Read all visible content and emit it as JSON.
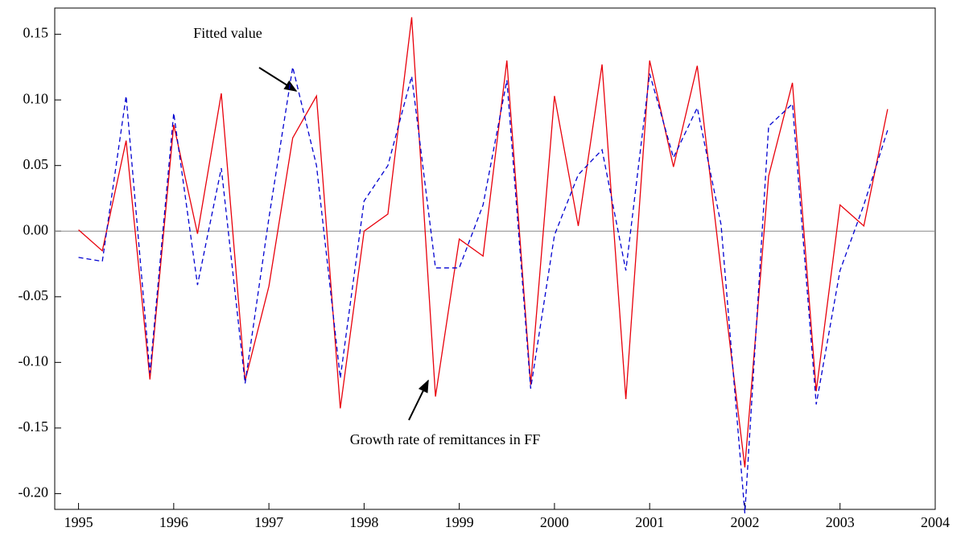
{
  "chart_data": {
    "type": "line",
    "x": [
      1995,
      1995.25,
      1995.5,
      1995.75,
      1996,
      1996.25,
      1996.5,
      1996.75,
      1997,
      1997.25,
      1997.5,
      1997.75,
      1998,
      1998.25,
      1998.5,
      1998.75,
      1999,
      1999.25,
      1999.5,
      1999.75,
      2000,
      2000.25,
      2000.5,
      2000.75,
      2001,
      2001.25,
      2001.5,
      2001.75,
      2002,
      2002.25,
      2002.5,
      2002.75,
      2003,
      2003.25,
      2003.5
    ],
    "series": [
      {
        "color": "#e8000b",
        "style": "solid",
        "values": [
          0.001,
          -0.015,
          0.069,
          -0.113,
          0.081,
          -0.002,
          0.105,
          -0.114,
          -0.042,
          0.071,
          0.103,
          -0.135,
          0.0,
          0.013,
          0.163,
          -0.126,
          -0.006,
          -0.019,
          0.13,
          -0.117,
          0.103,
          0.004,
          0.127,
          -0.128,
          0.13,
          0.049,
          0.126,
          -0.03,
          -0.18,
          0.042,
          0.113,
          -0.122,
          0.02,
          0.004,
          0.093
        ]
      },
      {
        "color": "#0000d0",
        "style": "dashed",
        "values": [
          -0.02,
          -0.023,
          0.103,
          -0.108,
          0.09,
          -0.041,
          0.048,
          -0.116,
          0.01,
          0.125,
          0.05,
          -0.112,
          0.023,
          0.05,
          0.118,
          -0.028,
          -0.028,
          0.02,
          0.115,
          -0.12,
          -0.003,
          0.043,
          0.062,
          -0.03,
          0.12,
          0.056,
          0.094,
          0.005,
          -0.215,
          0.08,
          0.097,
          -0.132,
          -0.03,
          0.02,
          0.077
        ]
      }
    ],
    "xlim": [
      1994.75,
      2004
    ],
    "xticks": [
      1995,
      1996,
      1997,
      1998,
      1999,
      2000,
      2001,
      2002,
      2003,
      2004
    ],
    "ylim": [
      -0.212,
      0.17
    ],
    "yticks": [
      {
        "value": -0.2,
        "label": "-0.20"
      },
      {
        "value": -0.15,
        "label": "-0.15"
      },
      {
        "value": -0.1,
        "label": "-0.10"
      },
      {
        "value": -0.05,
        "label": "-0.05"
      },
      {
        "value": 0,
        "label": "0.00"
      },
      {
        "value": 0.05,
        "label": "0.05"
      },
      {
        "value": 0.1,
        "label": "0.10"
      },
      {
        "value": 0.15,
        "label": "0.15"
      }
    ],
    "zero_line": true,
    "annotations": [
      {
        "text": "Fitted value"
      },
      {
        "text": "Growth rate of remittances in FF"
      }
    ]
  }
}
